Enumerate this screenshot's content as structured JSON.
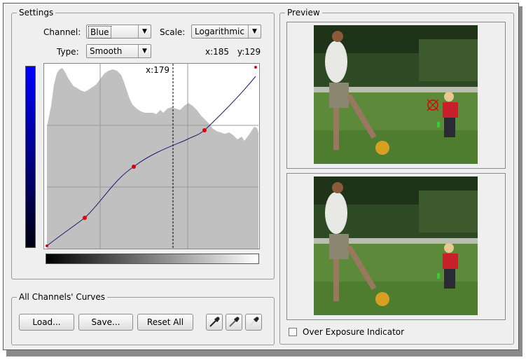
{
  "settings": {
    "title": "Settings",
    "channel_label": "Channel:",
    "channel_value": "Blue",
    "scale_label": "Scale:",
    "scale_value": "Logarithmic",
    "type_label": "Type:",
    "type_value": "Smooth",
    "coord_x": "x:185",
    "coord_y": "y:129",
    "cursor_readout": "x:179"
  },
  "curves": {
    "title": "All Channels' Curves",
    "load_label": "Load...",
    "save_label": "Save...",
    "reset_label": "Reset All"
  },
  "preview": {
    "title": "Preview",
    "over_exposure_label": "Over Exposure Indicator",
    "over_exposure_checked": false
  },
  "icons": {
    "dropdown_arrow": "chevron-down-icon",
    "picker": "eyedropper-icon"
  },
  "colors": {
    "channel_gradient_top": "#0000ff",
    "channel_gradient_bottom": "#000000",
    "histogram_fill": "#c0c0c0",
    "curve_line": "#1a1a6e",
    "curve_point": "#e00000"
  }
}
